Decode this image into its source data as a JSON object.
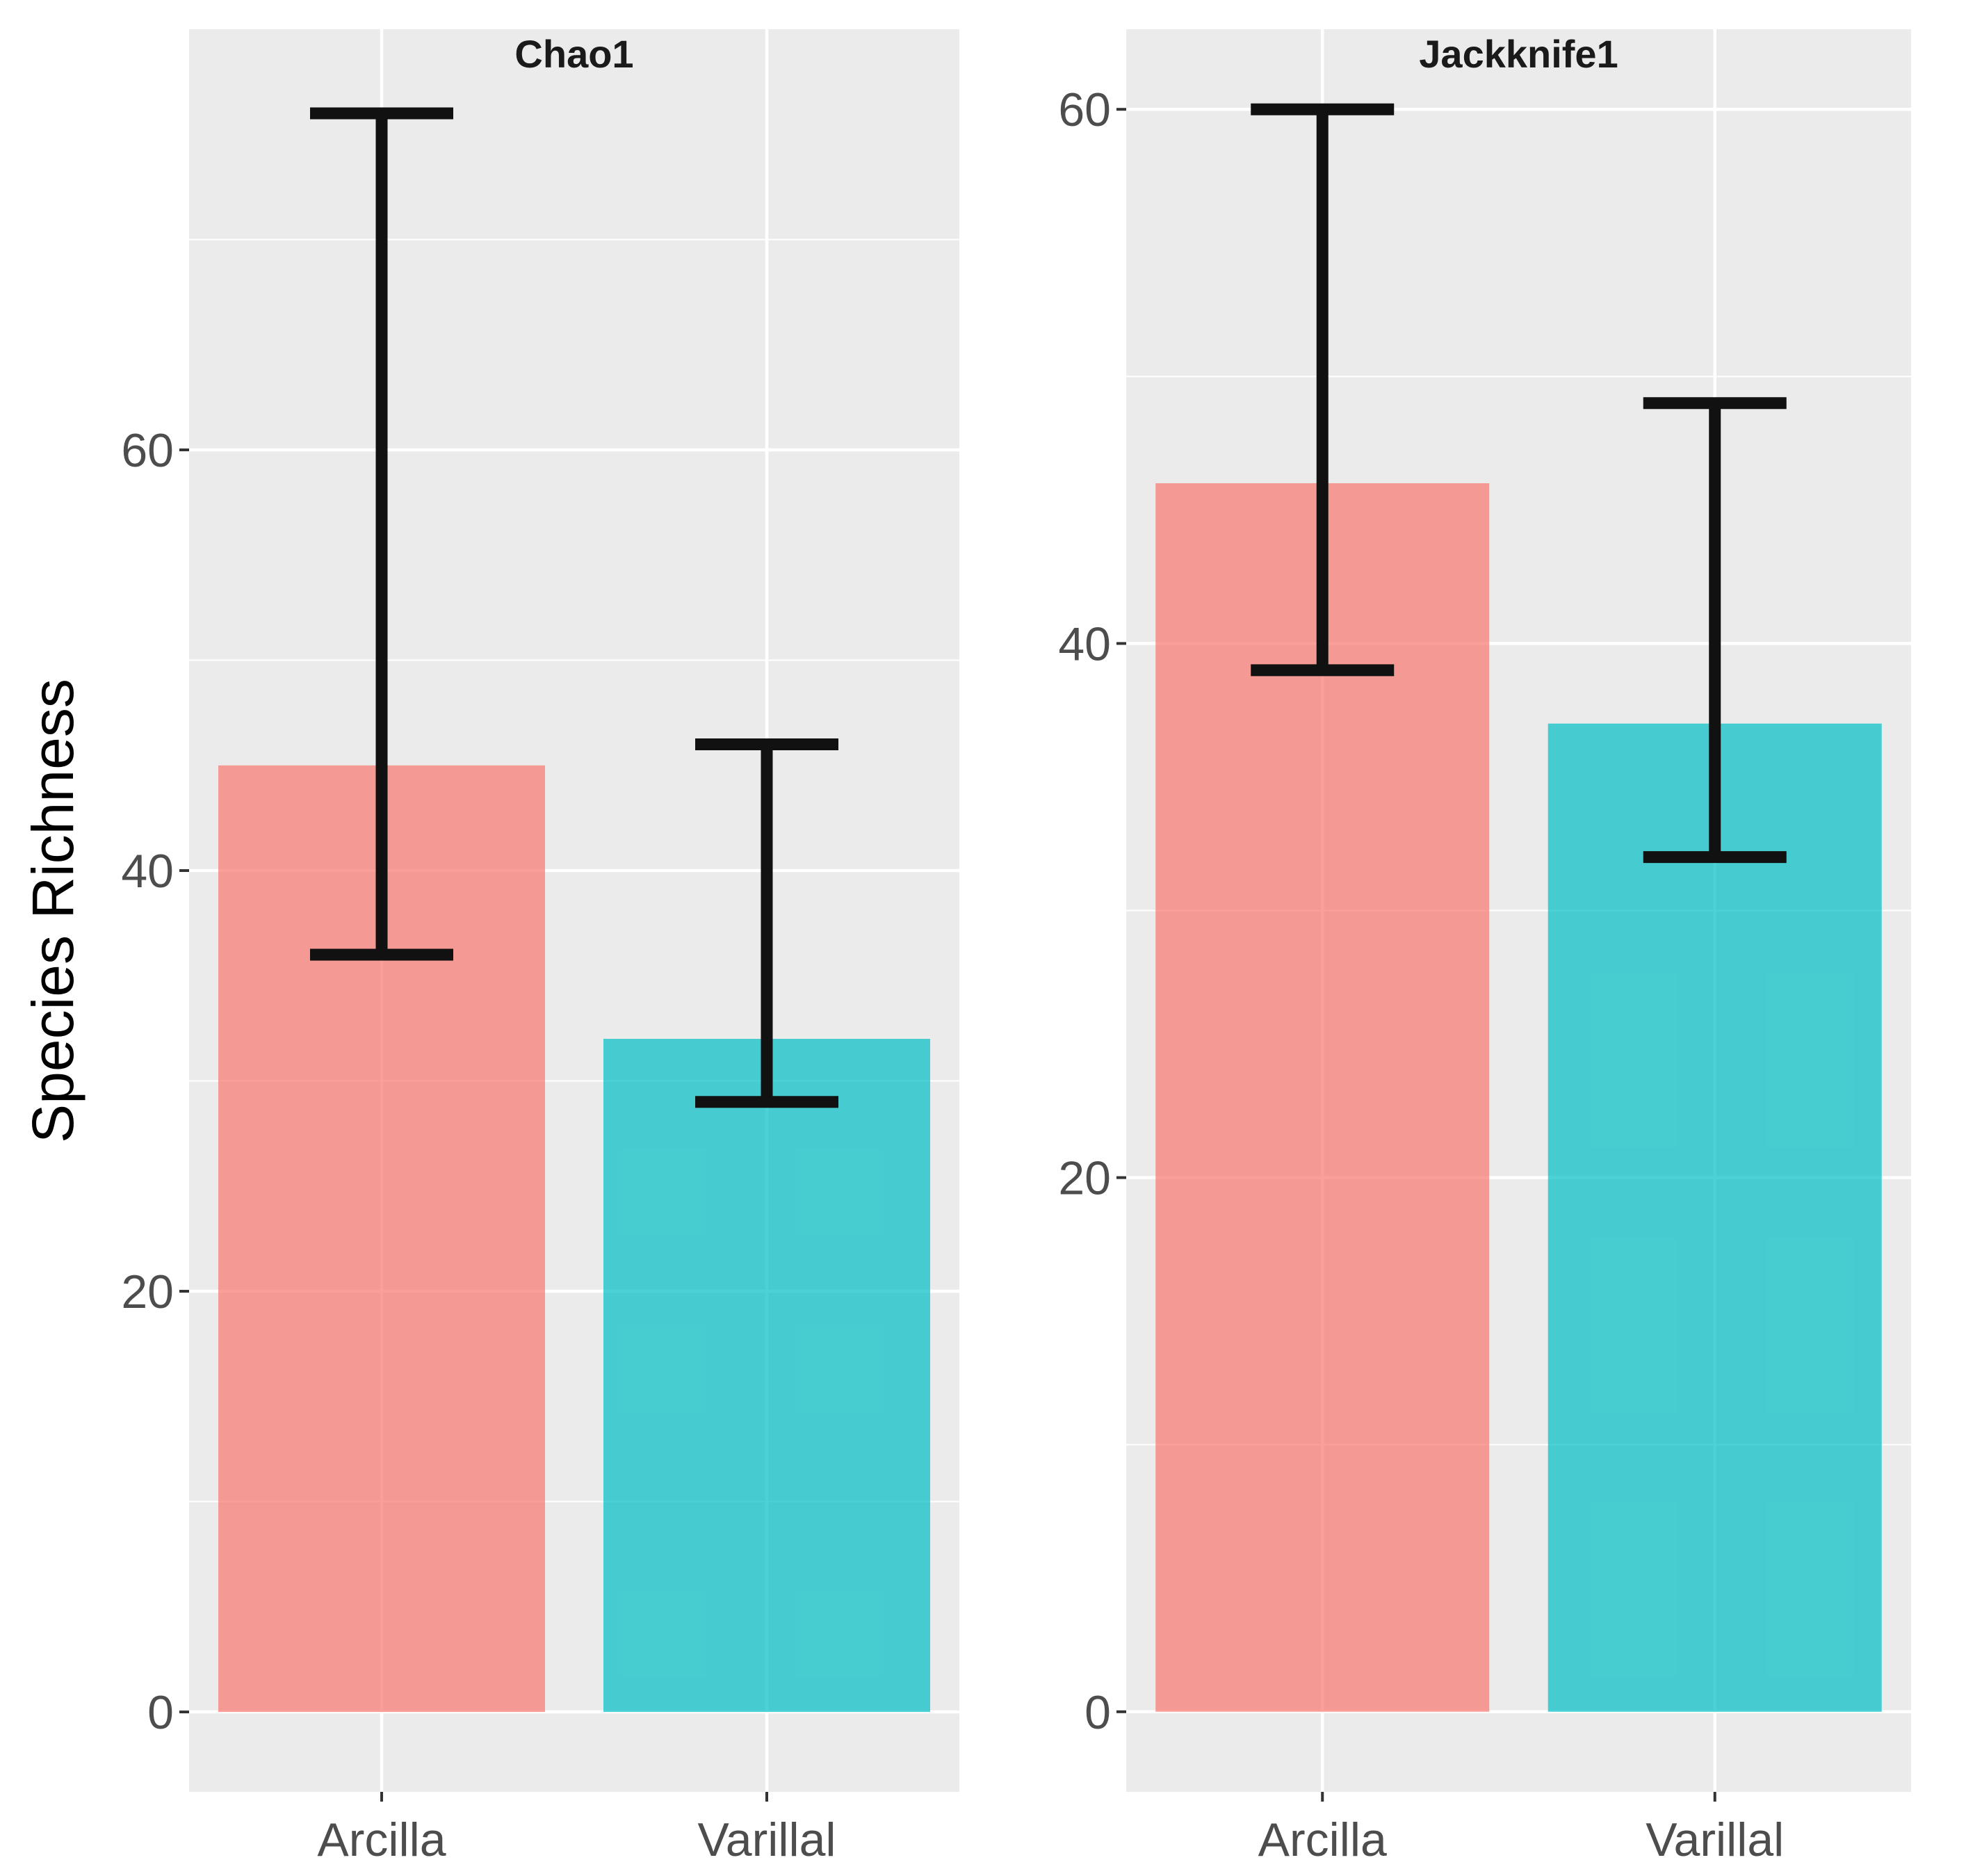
{
  "colors": {
    "panel_bg": "#EBEBEB",
    "grid": "#FFFFFF",
    "errorbar": "#111111",
    "Arcilla": "#F8766D",
    "Varillal": "#00BFC4",
    "tick_text": "#4D4D4D"
  },
  "ylabel": "Species Richness",
  "chart_data": [
    {
      "type": "bar",
      "title": "Chao1",
      "categories": [
        "Arcilla",
        "Varillal"
      ],
      "values": [
        45,
        32
      ],
      "error_low": [
        36,
        29
      ],
      "error_high": [
        76,
        46
      ],
      "ylim": [
        -3.8,
        80
      ],
      "yticks": [
        0,
        20,
        40,
        60
      ],
      "ytick_labels": [
        "0",
        "20",
        "40",
        "60"
      ],
      "ylabel": "Species Richness",
      "xlabel": ""
    },
    {
      "type": "bar",
      "title": "Jackknife1",
      "categories": [
        "Arcilla",
        "Varillal"
      ],
      "values": [
        46,
        37
      ],
      "error_low": [
        39,
        32
      ],
      "error_high": [
        60,
        49
      ],
      "ylim": [
        -3,
        63
      ],
      "yticks": [
        0,
        20,
        40,
        60
      ],
      "ytick_labels": [
        "0",
        "20",
        "40",
        "60"
      ],
      "ylabel": "",
      "xlabel": ""
    }
  ]
}
